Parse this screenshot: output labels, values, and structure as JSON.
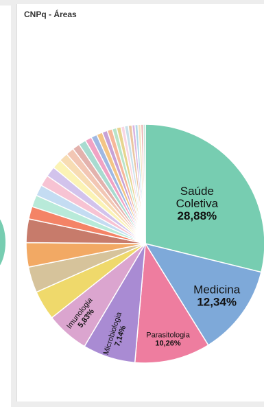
{
  "card": {
    "title": "CNPq - Áreas"
  },
  "chart_data": {
    "type": "pie",
    "title": "CNPq - Áreas",
    "slices": [
      {
        "label": "Saúde Coletiva",
        "value": 28.88,
        "display": "28,88%",
        "color": "#77cdb1"
      },
      {
        "label": "Medicina",
        "value": 12.34,
        "display": "12,34%",
        "color": "#7ea9d9"
      },
      {
        "label": "Parasitologia",
        "value": 10.26,
        "display": "10,26%",
        "color": "#ee7d9f"
      },
      {
        "label": "Microbiologia",
        "value": 7.14,
        "display": "7,14%",
        "color": "#a98bd3"
      },
      {
        "label": "Imunologia",
        "value": 5.83,
        "display": "5,83%",
        "color": "#dba5cf"
      },
      {
        "label": "",
        "value": 4.0,
        "color": "#efd96b"
      },
      {
        "label": "",
        "value": 3.5,
        "color": "#d6c39b"
      },
      {
        "label": "",
        "value": 3.3,
        "color": "#f2a964"
      },
      {
        "label": "",
        "value": 3.2,
        "color": "#c77b6b"
      },
      {
        "label": "",
        "value": 1.7,
        "color": "#f48366"
      },
      {
        "label": "",
        "value": 1.6,
        "color": "#b8ead9"
      },
      {
        "label": "",
        "value": 1.5,
        "color": "#c4dcf2"
      },
      {
        "label": "",
        "value": 1.5,
        "color": "#f7c3d3"
      },
      {
        "label": "",
        "value": 1.4,
        "color": "#d2c3ec"
      },
      {
        "label": "",
        "value": 1.3,
        "color": "#fbf3b5"
      },
      {
        "label": "",
        "value": 1.2,
        "color": "#f7dcb3"
      },
      {
        "label": "",
        "value": 1.1,
        "color": "#f2c6b4"
      },
      {
        "label": "",
        "value": 1.0,
        "color": "#e3b2ad"
      },
      {
        "label": "",
        "value": 1.0,
        "color": "#a8dbd0"
      },
      {
        "label": "",
        "value": 0.9,
        "color": "#f0a3c4"
      },
      {
        "label": "",
        "value": 0.8,
        "color": "#9fb8e3"
      },
      {
        "label": "",
        "value": 0.8,
        "color": "#f3c585"
      },
      {
        "label": "",
        "value": 0.7,
        "color": "#c7a2d6"
      },
      {
        "label": "",
        "value": 0.7,
        "color": "#f6b79a"
      },
      {
        "label": "",
        "value": 0.6,
        "color": "#b9e4c9"
      },
      {
        "label": "",
        "value": 0.6,
        "color": "#e7d48e"
      },
      {
        "label": "",
        "value": 0.5,
        "color": "#f8d6e3"
      },
      {
        "label": "",
        "value": 0.5,
        "color": "#c9e1ea"
      },
      {
        "label": "",
        "value": 0.5,
        "color": "#eac6a2"
      },
      {
        "label": "",
        "value": 0.4,
        "color": "#d8b4e2"
      },
      {
        "label": "",
        "value": 0.4,
        "color": "#b3d9e9"
      },
      {
        "label": "",
        "value": 0.4,
        "color": "#f4e3c2"
      },
      {
        "label": "",
        "value": 0.3,
        "color": "#e8a8a8"
      },
      {
        "label": "",
        "value": 0.3,
        "color": "#c2e5d8"
      }
    ]
  }
}
